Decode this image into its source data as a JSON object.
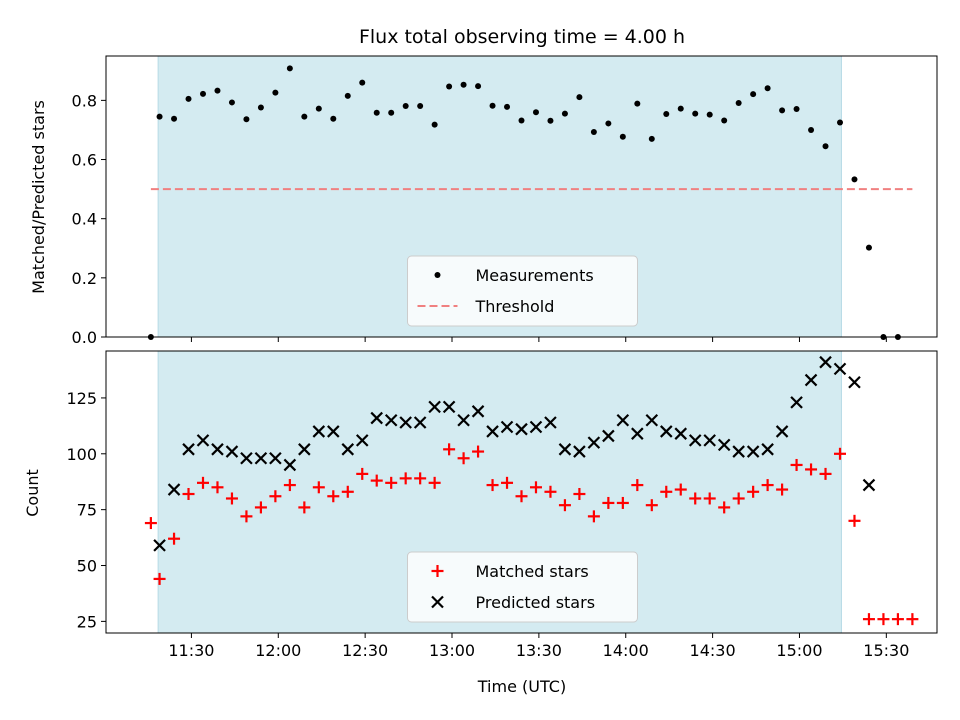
{
  "chart_data": {
    "title": "Flux total observing time = 4.00 h",
    "xlabel": "Time (UTC)",
    "x_unit": "minutes since midnight UTC",
    "x_ticks": [
      {
        "value": 690,
        "label": "11:30"
      },
      {
        "value": 720,
        "label": "12:00"
      },
      {
        "value": 750,
        "label": "12:30"
      },
      {
        "value": 780,
        "label": "13:00"
      },
      {
        "value": 810,
        "label": "13:30"
      },
      {
        "value": 840,
        "label": "14:00"
      },
      {
        "value": 870,
        "label": "14:30"
      },
      {
        "value": 900,
        "label": "15:00"
      },
      {
        "value": 930,
        "label": "15:30"
      }
    ],
    "xlim": [
      660.5,
      947.5
    ],
    "shaded_span": {
      "x0": 678.5,
      "x1": 914.5,
      "color": "#d4ebf1"
    },
    "top": {
      "type": "scatter",
      "ylabel": "Matched/Predicted stars",
      "ylim": [
        0,
        0.95
      ],
      "y_ticks": [
        0.0,
        0.2,
        0.4,
        0.6,
        0.8
      ],
      "y_tick_labels": [
        "0.0",
        "0.2",
        "0.4",
        "0.6",
        "0.8"
      ],
      "legend": {
        "position": "lower-center",
        "entries": [
          "Measurements",
          "Threshold"
        ]
      },
      "series": [
        {
          "name": "Measurements",
          "marker": "dot",
          "color": "#000000",
          "x": [
            676,
            679,
            684,
            689,
            694,
            699,
            704,
            709,
            714,
            719,
            724,
            729,
            734,
            739,
            744,
            749,
            754,
            759,
            764,
            769,
            774,
            779,
            784,
            789,
            794,
            799,
            804,
            809,
            814,
            819,
            824,
            829,
            834,
            839,
            844,
            849,
            854,
            859,
            864,
            869,
            874,
            879,
            884,
            889,
            894,
            899,
            904,
            909,
            914,
            919,
            924,
            929,
            934
          ],
          "y": [
            0.0,
            0.745,
            0.738,
            0.805,
            0.822,
            0.833,
            0.793,
            0.736,
            0.776,
            0.826,
            0.908,
            0.745,
            0.772,
            0.738,
            0.815,
            0.86,
            0.758,
            0.758,
            0.781,
            0.781,
            0.718,
            0.847,
            0.853,
            0.848,
            0.782,
            0.778,
            0.732,
            0.76,
            0.731,
            0.755,
            0.811,
            0.693,
            0.722,
            0.677,
            0.789,
            0.67,
            0.754,
            0.772,
            0.755,
            0.752,
            0.732,
            0.791,
            0.821,
            0.841,
            0.766,
            0.771,
            0.7,
            0.645,
            0.725,
            0.533,
            0.302,
            0.0,
            0.0
          ]
        },
        {
          "name": "Threshold",
          "line_style": "dashed",
          "color": "#f08080",
          "x": [
            676,
            939
          ],
          "y": [
            0.5,
            0.5
          ]
        }
      ]
    },
    "bottom": {
      "type": "scatter",
      "ylabel": "Count",
      "ylim": [
        19.8,
        146.0
      ],
      "y_ticks": [
        25,
        50,
        75,
        100,
        125
      ],
      "y_tick_labels": [
        "25",
        "50",
        "75",
        "100",
        "125"
      ],
      "legend": {
        "position": "lower-center",
        "entries": [
          "Matched stars",
          "Predicted stars"
        ]
      },
      "series": [
        {
          "name": "Matched stars",
          "marker": "plus",
          "color": "#ff0000",
          "x": [
            676,
            679,
            684,
            689,
            694,
            699,
            704,
            709,
            714,
            719,
            724,
            729,
            734,
            739,
            744,
            749,
            754,
            759,
            764,
            769,
            774,
            779,
            784,
            789,
            794,
            799,
            804,
            809,
            814,
            819,
            824,
            829,
            834,
            839,
            844,
            849,
            854,
            859,
            864,
            869,
            874,
            879,
            884,
            889,
            894,
            899,
            904,
            909,
            914,
            919,
            924,
            929,
            934,
            939
          ],
          "y": [
            69,
            44,
            62,
            82,
            87,
            85,
            80,
            72,
            76,
            81,
            86,
            76,
            85,
            81,
            83,
            91,
            88,
            87,
            89,
            89,
            87,
            102,
            98,
            101,
            86,
            87,
            81,
            85,
            83,
            77,
            82,
            72,
            78,
            78,
            86,
            77,
            83,
            84,
            80,
            80,
            76,
            80,
            83,
            86,
            84,
            95,
            93,
            91,
            100,
            70,
            26,
            26,
            26,
            26
          ]
        },
        {
          "name": "Predicted stars",
          "marker": "x",
          "color": "#000000",
          "x": [
            679,
            684,
            689,
            694,
            699,
            704,
            709,
            714,
            719,
            724,
            729,
            734,
            739,
            744,
            749,
            754,
            759,
            764,
            769,
            774,
            779,
            784,
            789,
            794,
            799,
            804,
            809,
            814,
            819,
            824,
            829,
            834,
            839,
            844,
            849,
            854,
            859,
            864,
            869,
            874,
            879,
            884,
            889,
            894,
            899,
            904,
            909,
            914,
            919,
            924
          ],
          "y": [
            59,
            84,
            102,
            106,
            102,
            101,
            98,
            98,
            98,
            95,
            102,
            110,
            110,
            102,
            106,
            116,
            115,
            114,
            114,
            121,
            121,
            115,
            119,
            110,
            112,
            111,
            112,
            114,
            102,
            101,
            105,
            108,
            115,
            109,
            115,
            110,
            109,
            106,
            106,
            104,
            101,
            101,
            102,
            110,
            123,
            133,
            141,
            138,
            132,
            86
          ]
        }
      ]
    }
  }
}
